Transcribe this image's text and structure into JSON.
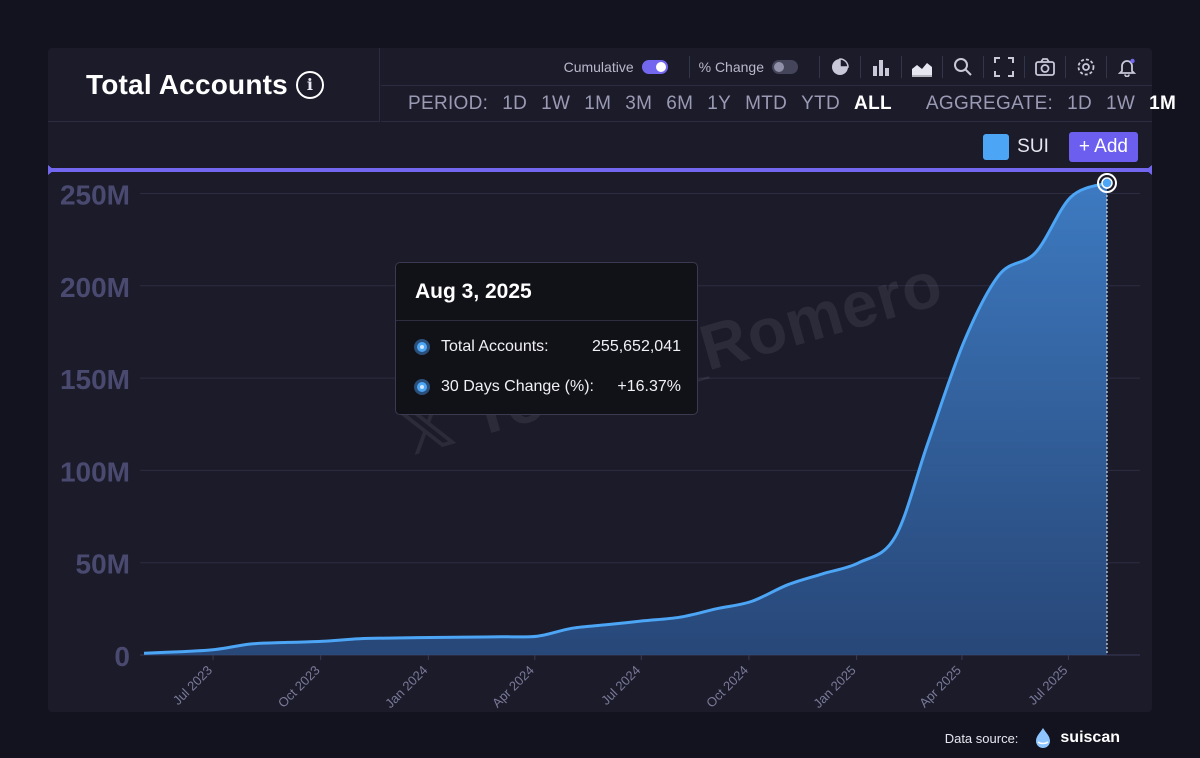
{
  "header": {
    "title": "Total Accounts",
    "info_icon": "info-icon"
  },
  "toolbar": {
    "cumulative_label": "Cumulative",
    "cumulative_on": true,
    "pct_change_label": "% Change",
    "pct_change_on": false,
    "icons": [
      "pie-chart-icon",
      "bar-chart-icon",
      "area-chart-icon",
      "zoom-icon",
      "fullscreen-icon",
      "camera-icon",
      "settings-icon",
      "bell-icon"
    ]
  },
  "period": {
    "label": "PERIOD:",
    "options": [
      "1D",
      "1W",
      "1M",
      "3M",
      "6M",
      "1Y",
      "MTD",
      "YTD",
      "ALL"
    ],
    "active": "ALL"
  },
  "aggregate": {
    "label": "AGGREGATE:",
    "options": [
      "1D",
      "1W",
      "1M"
    ],
    "active": "1M"
  },
  "legend": {
    "series_label": "SUI",
    "add_label": "+ Add"
  },
  "tooltip": {
    "date": "Aug 3, 2025",
    "rows": [
      {
        "name": "Total Accounts:",
        "value": "255,652,041"
      },
      {
        "name": "30 Days Change (%):",
        "value": "+16.37%"
      }
    ]
  },
  "watermark": "Torero_Romero",
  "datasource": {
    "label": "Data source:",
    "name": "suiscan"
  },
  "colors": {
    "line": "#4da5f5",
    "accent": "#7367f0",
    "background": "#1b1b2a"
  },
  "chart_data": {
    "type": "area",
    "title": "Total Accounts",
    "xlabel": "",
    "ylabel": "",
    "ylim": [
      0,
      260000000
    ],
    "y_ticks": [
      0,
      50000000,
      100000000,
      150000000,
      200000000,
      250000000
    ],
    "y_tick_labels": [
      "0",
      "50M",
      "100M",
      "150M",
      "200M",
      "250M"
    ],
    "x_range": [
      "2023-05-03",
      "2025-08-03"
    ],
    "x_ticks": [
      "2023-07-01",
      "2023-10-01",
      "2024-01-01",
      "2024-04-01",
      "2024-07-01",
      "2024-10-01",
      "2025-01-01",
      "2025-04-01",
      "2025-07-01"
    ],
    "x_tick_labels": [
      "Jul 2023",
      "Oct 2023",
      "Jan 2024",
      "Apr 2024",
      "Jul 2024",
      "Oct 2024",
      "Jan 2025",
      "Apr 2025",
      "Jul 2025"
    ],
    "grid": true,
    "series": [
      {
        "name": "SUI",
        "x": [
          "2023-05-03",
          "2023-06-03",
          "2023-07-03",
          "2023-08-03",
          "2023-09-03",
          "2023-10-03",
          "2023-11-03",
          "2023-12-03",
          "2024-01-03",
          "2024-02-03",
          "2024-03-03",
          "2024-04-03",
          "2024-05-03",
          "2024-06-03",
          "2024-07-03",
          "2024-08-03",
          "2024-09-03",
          "2024-10-03",
          "2024-11-03",
          "2024-12-03",
          "2025-01-03",
          "2025-02-03",
          "2025-03-03",
          "2025-04-03",
          "2025-05-03",
          "2025-06-03",
          "2025-07-03",
          "2025-08-03"
        ],
        "values": [
          1000000,
          1800000,
          3000000,
          6000000,
          6800000,
          7400000,
          8800000,
          9200000,
          9500000,
          9700000,
          9900000,
          10200000,
          14500000,
          16500000,
          18500000,
          20500000,
          25000000,
          29000000,
          38000000,
          44000000,
          50000000,
          64000000,
          115000000,
          170000000,
          206000000,
          218000000,
          248000000,
          255652041
        ]
      }
    ],
    "highlight": {
      "x": "2025-08-03",
      "value": 255652041
    }
  }
}
